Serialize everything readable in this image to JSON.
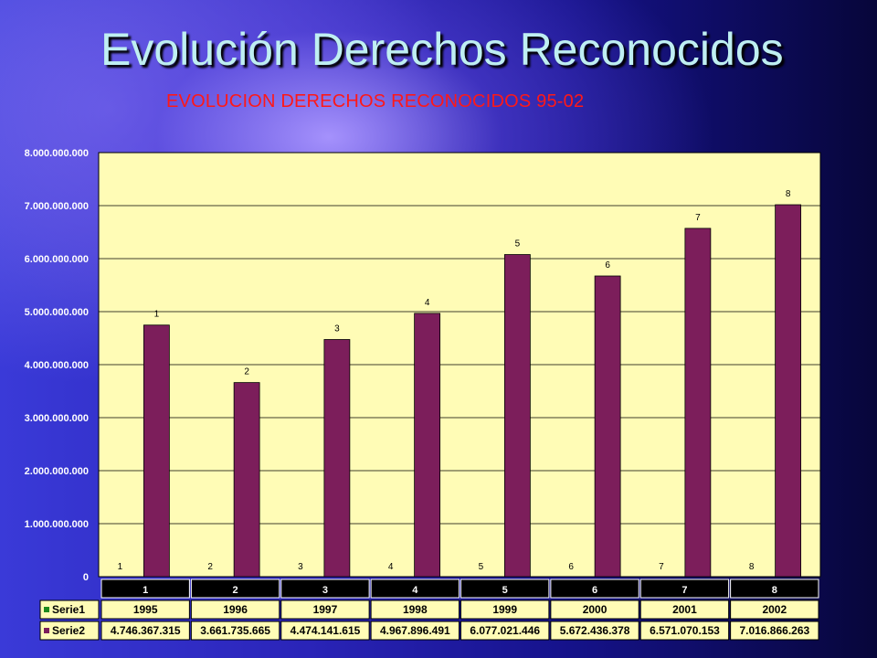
{
  "slide": {
    "title": "Evolución Derechos Reconocidos"
  },
  "colors": {
    "plot_background": "#fffcb6",
    "bar": "#7c1e5b",
    "legend_serie1": "#1d8a1d",
    "title": "#bfeff2",
    "chart_title": "#ff1818"
  },
  "chart_data": {
    "type": "bar",
    "title": "EVOLUCION DERECHOS RECONOCIDOS 95-02",
    "categories": [
      "1",
      "2",
      "3",
      "4",
      "5",
      "6",
      "7",
      "8"
    ],
    "ylim": [
      0,
      8000000000
    ],
    "yticks": [
      "0",
      "1.000.000.000",
      "2.000.000.000",
      "3.000.000.000",
      "4.000.000.000",
      "5.000.000.000",
      "6.000.000.000",
      "7.000.000.000",
      "8.000.000.000"
    ],
    "grid": true,
    "legend_position": "data-table",
    "series": [
      {
        "name": "Serie1",
        "values": [
          1995,
          1996,
          1997,
          1998,
          1999,
          2000,
          2001,
          2002
        ],
        "display": [
          "1995",
          "1996",
          "1997",
          "1998",
          "1999",
          "2000",
          "2001",
          "2002"
        ],
        "bar_labels": [
          "1",
          "2",
          "3",
          "4",
          "5",
          "6",
          "7",
          "8"
        ]
      },
      {
        "name": "Serie2",
        "values": [
          4746367315,
          3661735665,
          4474141615,
          4967896491,
          6077021446,
          5672436378,
          6571070153,
          7016866263
        ],
        "display": [
          "4.746.367.315",
          "3.661.735.665",
          "4.474.141.615",
          "4.967.896.491",
          "6.077.021.446",
          "5.672.436.378",
          "6.571.070.153",
          "7.016.866.263"
        ],
        "bar_labels": [
          "1",
          "2",
          "3",
          "4",
          "5",
          "6",
          "7",
          "8"
        ]
      }
    ]
  }
}
